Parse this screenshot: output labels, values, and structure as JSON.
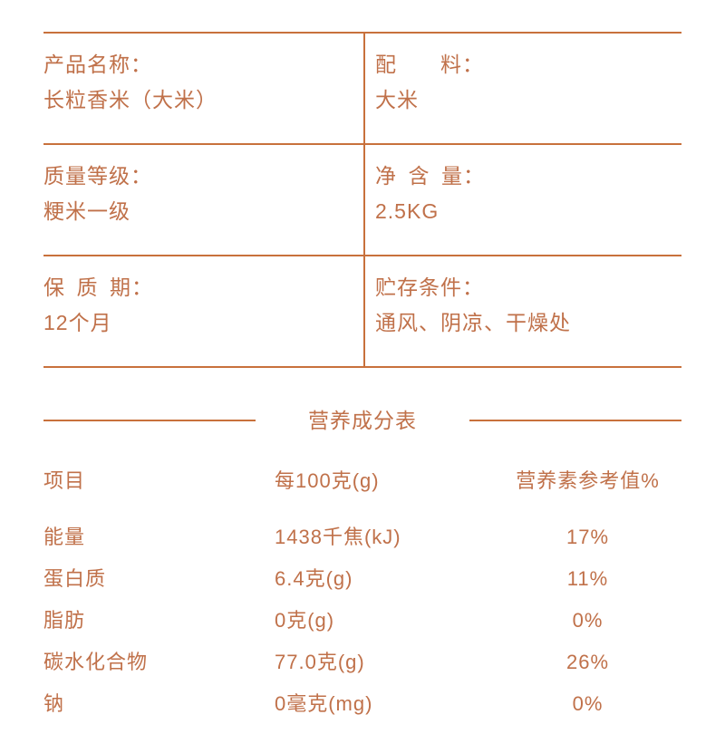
{
  "accent": {
    "line_color": "#c8713c",
    "text_color": "#c0714a"
  },
  "info_table": {
    "rows": [
      [
        {
          "label": "产品名称：",
          "value": "长粒香米（大米）"
        },
        {
          "label": "配　　料：",
          "value": "大米"
        }
      ],
      [
        {
          "label": "质量等级：",
          "value": "粳米一级"
        },
        {
          "label": "净 含 量：",
          "value": "2.5KG"
        }
      ],
      [
        {
          "label": "保 质 期：",
          "value": "12个月"
        },
        {
          "label": "贮存条件：",
          "value": "通风、阴凉、干燥处"
        }
      ]
    ]
  },
  "nutrition": {
    "section_title": "营养成分表",
    "columns": [
      "项目",
      "每100克(g)",
      "营养素参考值%"
    ],
    "rows": [
      {
        "item": "能量",
        "per_100g": "1438千焦(kJ)",
        "nrv": "17%"
      },
      {
        "item": "蛋白质",
        "per_100g": "6.4克(g)",
        "nrv": "11%"
      },
      {
        "item": "脂肪",
        "per_100g": "0克(g)",
        "nrv": "0%"
      },
      {
        "item": "碳水化合物",
        "per_100g": "77.0克(g)",
        "nrv": "26%"
      },
      {
        "item": "钠",
        "per_100g": "0毫克(mg)",
        "nrv": "0%"
      }
    ]
  }
}
